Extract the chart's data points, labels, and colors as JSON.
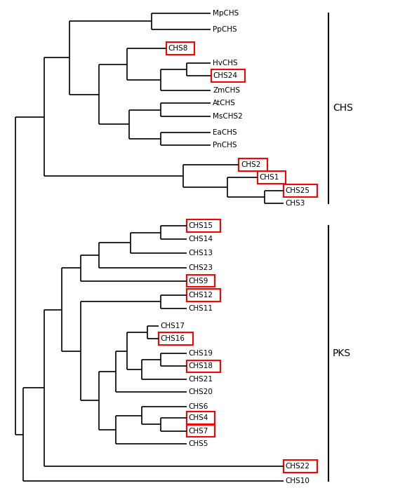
{
  "figsize": [
    5.97,
    7.16
  ],
  "dpi": 100,
  "boxed": [
    "CHS8",
    "CHS24",
    "CHS2",
    "CHS1",
    "CHS25",
    "CHS15",
    "CHS9",
    "CHS12",
    "CHS16",
    "CHS18",
    "CHS4",
    "CHS7",
    "CHS22"
  ],
  "box_color": "#ff0000",
  "line_color": "#000000",
  "fontsize": 7.5,
  "group_fontsize": 10,
  "lw": 1.2,
  "leaves": [
    "MpCHS",
    "PpCHS",
    "CHS8",
    "HvCHS",
    "CHS24",
    "ZmCHS",
    "AtCHS",
    "MsCHS2",
    "EaCHS",
    "PnCHS",
    "CHS2",
    "CHS1",
    "CHS25",
    "CHS3",
    "CHS15",
    "CHS14",
    "CHS13",
    "CHS23",
    "CHS9",
    "CHS12",
    "CHS11",
    "CHS17",
    "CHS16",
    "CHS19",
    "CHS18",
    "CHS21",
    "CHS20",
    "CHS6",
    "CHS4",
    "CHS7",
    "CHS5",
    "CHS22",
    "CHS10"
  ],
  "leaf_y": {
    "MpCHS": 0,
    "PpCHS": 1,
    "CHS8": 2.2,
    "HvCHS": 3.1,
    "CHS24": 3.9,
    "ZmCHS": 4.8,
    "AtCHS": 5.6,
    "MsCHS2": 6.4,
    "EaCHS": 7.4,
    "PnCHS": 8.2,
    "CHS2": 9.4,
    "CHS1": 10.2,
    "CHS25": 11.0,
    "CHS3": 11.8,
    "CHS15": 13.2,
    "CHS14": 14.0,
    "CHS13": 14.9,
    "CHS23": 15.8,
    "CHS9": 16.6,
    "CHS12": 17.5,
    "CHS11": 18.3,
    "CHS17": 19.4,
    "CHS16": 20.2,
    "CHS19": 21.1,
    "CHS18": 21.9,
    "CHS21": 22.7,
    "CHS20": 23.5,
    "CHS6": 24.4,
    "CHS4": 25.1,
    "CHS7": 25.9,
    "CHS5": 26.7,
    "CHS22": 28.1,
    "CHS10": 29.0
  }
}
